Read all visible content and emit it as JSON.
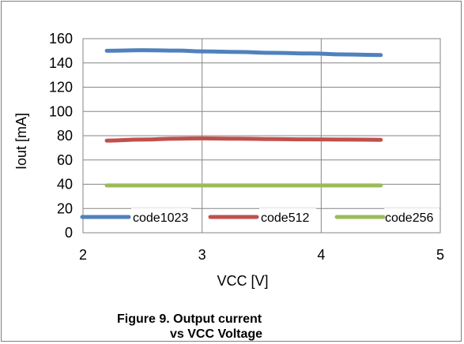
{
  "chart_data": {
    "type": "line",
    "xlabel": "VCC [V]",
    "ylabel": "Iout  [mA]",
    "xlim": [
      2,
      5
    ],
    "ylim": [
      0,
      160
    ],
    "xticks": [
      2,
      3,
      4,
      5
    ],
    "yticks": [
      0,
      20,
      40,
      60,
      80,
      100,
      120,
      140,
      160
    ],
    "grid": true,
    "legend_position": "bottom",
    "series": [
      {
        "name": "code1023",
        "color": "#4f81bd",
        "x": [
          2.2,
          2.5,
          2.8,
          3.0,
          3.3,
          3.6,
          3.9,
          4.2,
          4.5
        ],
        "y": [
          150,
          150.5,
          150.2,
          149.5,
          149,
          148.3,
          147.8,
          147,
          146.5
        ]
      },
      {
        "name": "code512",
        "color": "#c0504d",
        "x": [
          2.2,
          2.5,
          2.8,
          3.0,
          3.3,
          3.6,
          3.9,
          4.2,
          4.5
        ],
        "y": [
          76,
          76.8,
          77.6,
          77.8,
          77.5,
          77.2,
          77,
          76.8,
          76.6
        ]
      },
      {
        "name": "code256",
        "color": "#9bbb59",
        "x": [
          2.2,
          2.5,
          2.8,
          3.0,
          3.3,
          3.6,
          3.9,
          4.2,
          4.5
        ],
        "y": [
          39,
          39,
          39,
          39,
          39,
          39,
          39,
          39,
          39
        ]
      }
    ]
  },
  "caption": {
    "line1": "Figure 9.  Output current",
    "line2": "vs VCC Voltage"
  }
}
